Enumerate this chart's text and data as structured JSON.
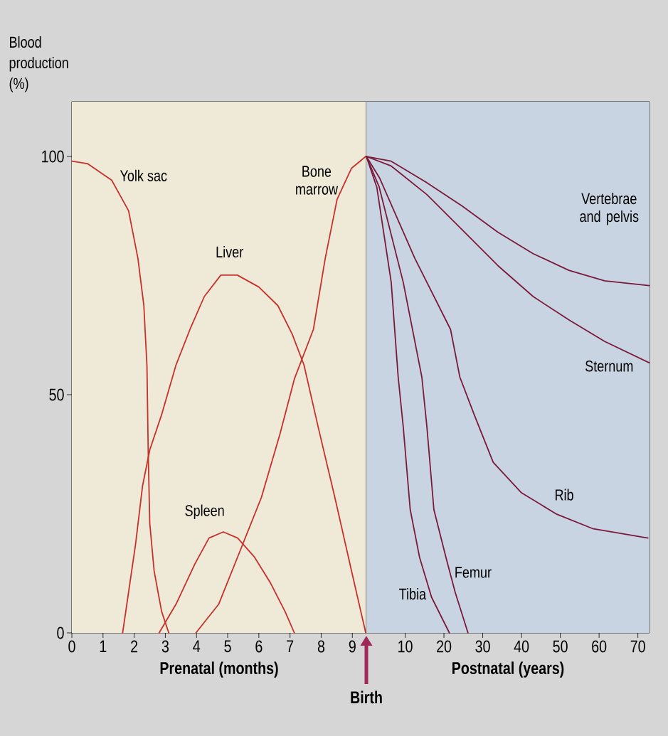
{
  "chart_data": [
    {
      "type": "line",
      "xlabel": "Prenatal (months)",
      "ylabel": "Blood production (%)",
      "xlim": [
        0,
        9.45
      ],
      "ylim": [
        0,
        111.5
      ],
      "xticks": [
        0,
        1,
        2,
        3,
        4,
        5,
        6,
        7,
        8,
        9
      ],
      "yticks": [
        0,
        50,
        100
      ],
      "bands": [
        {
          "axis": "x",
          "from": 0,
          "to": 9.45,
          "color": "#efe9d8"
        }
      ],
      "annotations": [
        "Birth"
      ],
      "series": [
        {
          "name": "Yolk sac",
          "color": "#c8302a",
          "x": [
            0,
            0.5,
            1.28,
            1.82,
            2.12,
            2.31,
            2.41,
            2.45,
            2.5,
            2.64,
            2.88,
            3.11
          ],
          "values": [
            99,
            98.5,
            95,
            88.6,
            78.6,
            68.7,
            56,
            38,
            23,
            13,
            4.5,
            0
          ]
        },
        {
          "name": "Liver",
          "color": "#c8302a",
          "x": [
            1.63,
            2.04,
            2.27,
            2.5,
            2.88,
            3.34,
            3.79,
            4.25,
            4.78,
            5.31,
            6.0,
            6.61,
            7.07,
            7.45,
            7.9,
            8.44,
            8.96,
            9.43
          ],
          "values": [
            0,
            18.4,
            30.9,
            38.4,
            45.8,
            56.2,
            63.7,
            70.6,
            75.1,
            75.1,
            72.6,
            68.7,
            62.7,
            56.2,
            43.3,
            28.4,
            13.4,
            0
          ]
        },
        {
          "name": "Spleen",
          "color": "#c8302a",
          "x": [
            2.8,
            3.34,
            3.95,
            4.4,
            4.86,
            5.32,
            5.85,
            6.38,
            6.84,
            7.14
          ],
          "values": [
            0,
            6,
            14.5,
            19.9,
            21.2,
            19.9,
            16,
            10.4,
            4.5,
            0
          ]
        },
        {
          "name": "Bone marrow",
          "color": "#c8302a",
          "x": [
            3.98,
            4.71,
            5.47,
            6.08,
            6.68,
            7.14,
            7.75,
            8.13,
            8.51,
            8.97,
            9.43
          ],
          "values": [
            0,
            6,
            18.4,
            28.4,
            41.8,
            53.3,
            63.7,
            78.6,
            91,
            97.5,
            100
          ]
        }
      ]
    },
    {
      "type": "line",
      "xlabel": "Postnatal (years)",
      "xlim": [
        0,
        73
      ],
      "ylim": [
        0,
        111.5
      ],
      "xticks": [
        10,
        20,
        30,
        40,
        50,
        60,
        70
      ],
      "tick_labels": "x",
      "bands": [
        {
          "axis": "x",
          "from": 0,
          "to": 73,
          "color": "#c9d4e2"
        }
      ],
      "series": [
        {
          "name": "Vertebrae and pelvis",
          "color": "#7a1a3a",
          "x": [
            0,
            6.4,
            15.6,
            24.7,
            33.9,
            43,
            52.2,
            61.4,
            72.9
          ],
          "values": [
            100,
            99,
            94.5,
            89.6,
            84.1,
            79.6,
            76.1,
            73.9,
            72.9
          ]
        },
        {
          "name": "Sternum",
          "color": "#7a1a3a",
          "x": [
            0,
            6.4,
            15.6,
            24.7,
            33.9,
            43,
            52.2,
            61.4,
            72.9
          ],
          "values": [
            100,
            98,
            92,
            84.6,
            77.1,
            70.6,
            65.7,
            61.2,
            56.7
          ]
        },
        {
          "name": "Rib",
          "color": "#7a1a3a",
          "x": [
            0,
            3.4,
            12.5,
            21.7,
            24.1,
            27.8,
            32.7,
            40,
            49.1,
            58.3,
            72.6
          ],
          "values": [
            100,
            95.5,
            78.6,
            63.7,
            53.7,
            45.8,
            35.8,
            29.4,
            24.9,
            21.9,
            19.9
          ]
        },
        {
          "name": "Femur",
          "color": "#7a1a3a",
          "x": [
            0,
            3.3,
            9.5,
            14.3,
            15.6,
            17.4,
            20.5,
            22.9,
            26.2
          ],
          "values": [
            100,
            93.6,
            73.6,
            53.7,
            43.3,
            25.9,
            15.9,
            8.5,
            0
          ]
        },
        {
          "name": "Tibia",
          "color": "#7a1a3a",
          "x": [
            0,
            2.7,
            6.4,
            8.2,
            9.5,
            11.3,
            13.7,
            16.8,
            21.4
          ],
          "values": [
            100,
            93.5,
            73.6,
            53.7,
            43.3,
            25.9,
            15.9,
            7.5,
            0
          ]
        }
      ]
    }
  ]
}
